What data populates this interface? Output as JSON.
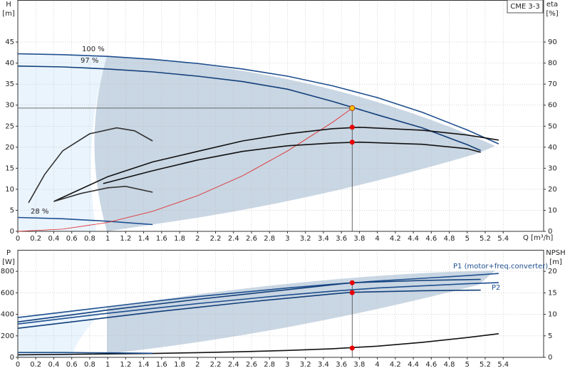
{
  "chart_data": [
    {
      "type": "line",
      "title": "CME 3-3",
      "y_label": "H",
      "y_unit": "[m]",
      "y2_label": "eta",
      "y2_unit": "[%]",
      "x_label": "Q [m³/h]",
      "xlim": [
        0,
        5.85
      ],
      "xticks": [
        0,
        0.2,
        0.4,
        0.6,
        0.8,
        1,
        1.2,
        1.4,
        1.6,
        1.8,
        2,
        2.2,
        2.4,
        2.6,
        2.8,
        3,
        3.2,
        3.4,
        3.6,
        3.8,
        4,
        4.2,
        4.4,
        4.6,
        4.8,
        5,
        5.2,
        5.4
      ],
      "ylim": [
        0,
        55
      ],
      "yticks": [
        0,
        5,
        10,
        15,
        20,
        25,
        30,
        35,
        40,
        45
      ],
      "y2lim": [
        0,
        110
      ],
      "y2ticks": [
        0,
        10,
        20,
        30,
        40,
        50,
        60,
        70,
        80,
        90
      ],
      "grid": true,
      "series": [
        {
          "name": "100 %",
          "color": "#1f4f8f",
          "x": [
            0,
            0.5,
            1,
            1.5,
            2,
            2.5,
            3,
            3.5,
            4,
            4.5,
            5,
            5.35
          ],
          "values": [
            42.2,
            42,
            41.6,
            40.9,
            39.9,
            38.6,
            36.9,
            34.6,
            31.8,
            28.3,
            24.1,
            20.8
          ]
        },
        {
          "name": "97 %",
          "color": "#123f7a",
          "x": [
            0,
            0.5,
            1,
            1.5,
            2,
            2.5,
            3,
            3.5,
            4,
            4.5,
            5,
            5.15
          ],
          "values": [
            39.3,
            39.1,
            38.6,
            37.9,
            36.9,
            35.6,
            33.8,
            30.9,
            27.7,
            24.6,
            20.6,
            19.2
          ]
        },
        {
          "name": "28 %",
          "color": "#1f4f8f",
          "x": [
            0,
            0.5,
            1,
            1.5
          ],
          "values": [
            3.3,
            3,
            2.4,
            1.6
          ]
        },
        {
          "color": "#e02020",
          "x": [
            0,
            0.5,
            1,
            1.5,
            2,
            2.5,
            3,
            3.5,
            3.72
          ],
          "values": [
            0,
            0.53,
            2.12,
            4.76,
            8.47,
            13.2,
            19.1,
            25.9,
            29.3
          ]
        },
        {
          "color": "#111111",
          "axis": "y2",
          "x": [
            0.4,
            1,
            1.5,
            2,
            2.5,
            3,
            3.5,
            3.8,
            4.5,
            5,
            5.35
          ],
          "values": [
            14.2,
            26,
            33,
            38,
            43,
            46.4,
            48.8,
            49.5,
            48.1,
            45.8,
            43.4
          ]
        },
        {
          "color": "#111111",
          "axis": "y2",
          "x": [
            0.95,
            1.5,
            2,
            2.5,
            3,
            3.5,
            3.8,
            4.5,
            5,
            5.15
          ],
          "values": [
            22.7,
            28.8,
            33.9,
            38,
            40.7,
            42,
            42.4,
            41.4,
            39.3,
            37.6
          ]
        },
        {
          "color": "#333333",
          "axis": "y2",
          "x": [
            0.12,
            0.3,
            0.5,
            0.8,
            1.1,
            1.3,
            1.5
          ],
          "values": [
            13.6,
            27.1,
            38.3,
            46.4,
            49.2,
            47.8,
            43
          ]
        },
        {
          "color": "#333333",
          "axis": "y2",
          "x": [
            0.4,
            0.7,
            1,
            1.2,
            1.5
          ],
          "values": [
            14.2,
            18,
            20.7,
            21.4,
            18.6
          ]
        }
      ],
      "points": [
        {
          "x": 3.72,
          "y": 29.3,
          "color": "#f5c400"
        },
        {
          "x": 3.72,
          "y": 49.5,
          "axis": "y2",
          "color": "#e60000"
        },
        {
          "x": 3.72,
          "y": 42.4,
          "axis": "y2",
          "color": "#e60000"
        }
      ]
    },
    {
      "type": "line",
      "y_label": "P",
      "y_unit": "[W]",
      "y2_label": "NPSH",
      "y2_unit": "[m]",
      "xlim": [
        0,
        5.85
      ],
      "xticks": [
        0,
        0.2,
        0.4,
        0.6,
        0.8,
        1,
        1.2,
        1.4,
        1.6,
        1.8,
        2,
        2.2,
        2.4,
        2.6,
        2.8,
        3,
        3.2,
        3.4,
        3.6,
        3.8,
        4,
        4.2,
        4.4,
        4.6,
        4.8,
        5,
        5.2,
        5.4
      ],
      "ylim": [
        0,
        1000
      ],
      "yticks": [
        0,
        200,
        400,
        600,
        800
      ],
      "y2lim": [
        0,
        25
      ],
      "y2ticks": [
        0,
        5,
        10,
        15,
        20
      ],
      "grid": true,
      "series": [
        {
          "name": "P1 (motor+freq.converter)",
          "color": "#1f4f8f",
          "x": [
            0,
            0.5,
            1,
            1.5,
            2,
            2.5,
            3,
            3.5,
            4,
            4.5,
            5,
            5.35
          ],
          "values": [
            370,
            420,
            470,
            520,
            565,
            605,
            645,
            680,
            710,
            735,
            760,
            780
          ]
        },
        {
          "color": "#123f7a",
          "x": [
            0,
            0.5,
            1,
            1.5,
            2,
            2.5,
            3,
            3.5,
            3.72,
            4.5,
            5.15
          ],
          "values": [
            330,
            385,
            440,
            490,
            540,
            585,
            630,
            675,
            694,
            715,
            725
          ]
        },
        {
          "name": "P2",
          "color": "#1f4f8f",
          "x": [
            0,
            0.5,
            1,
            1.5,
            2,
            2.5,
            3,
            3.5,
            4,
            4.5,
            5,
            5.35
          ],
          "values": [
            310,
            360,
            410,
            455,
            500,
            540,
            580,
            615,
            645,
            665,
            685,
            695
          ]
        },
        {
          "color": "#123f7a",
          "x": [
            0,
            0.5,
            1,
            1.5,
            2,
            2.5,
            3,
            3.5,
            3.72,
            4.5,
            5.15
          ],
          "values": [
            270,
            320,
            370,
            420,
            465,
            510,
            550,
            590,
            605,
            620,
            625
          ]
        },
        {
          "color": "#111111",
          "axis": "y2",
          "x": [
            0,
            1,
            1.5,
            2,
            2.5,
            3,
            3.5,
            4,
            4.5,
            5,
            5.35
          ],
          "values": [
            0.6,
            0.8,
            0.9,
            1.1,
            1.3,
            1.6,
            2,
            2.6,
            3.5,
            4.6,
            5.5
          ]
        },
        {
          "color": "#1f4f8f",
          "x": [
            0,
            0.5,
            1,
            1.5
          ],
          "values": [
            45,
            45,
            42,
            38
          ]
        }
      ],
      "points": [
        {
          "x": 3.72,
          "y": 694,
          "color": "#e60000"
        },
        {
          "x": 3.72,
          "y": 602,
          "color": "#e60000"
        },
        {
          "x": 3.72,
          "y": 2.15,
          "axis": "y2",
          "color": "#e60000"
        }
      ]
    }
  ]
}
